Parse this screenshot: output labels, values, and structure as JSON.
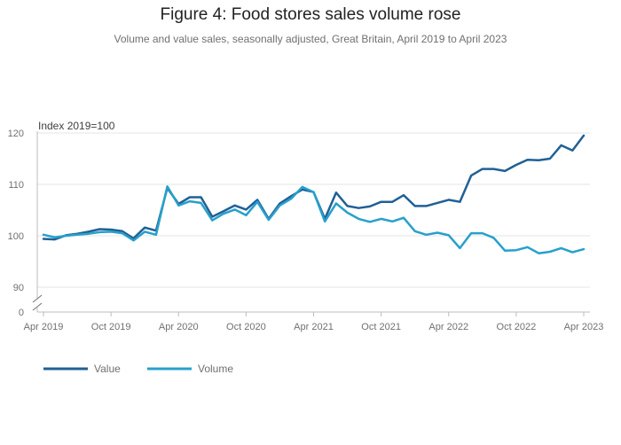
{
  "chart_data": {
    "type": "line",
    "title": "Figure 4: Food stores sales volume rose",
    "subtitle": "Volume and value sales, seasonally adjusted, Great Britain, April 2019 to April 2023",
    "ylabel": "Index 2019=100",
    "ylim": [
      87,
      122
    ],
    "yticks": [
      90,
      100,
      110,
      120
    ],
    "baseline_label": "0",
    "xtick_labels": [
      "Apr 2019",
      "Oct 2019",
      "Apr 2020",
      "Oct 2020",
      "Apr 2021",
      "Oct 2021",
      "Apr 2022",
      "Oct 2022",
      "Apr 2023"
    ],
    "xtick_positions": [
      0,
      6,
      12,
      18,
      24,
      30,
      36,
      42,
      48
    ],
    "series": [
      {
        "name": "Value",
        "color": "#206095",
        "values": [
          99.4,
          99.3,
          100.1,
          100.4,
          100.8,
          101.3,
          101.2,
          100.9,
          99.5,
          101.6,
          101.0,
          109.3,
          106.2,
          107.5,
          107.5,
          103.7,
          104.8,
          105.9,
          105.1,
          107.0,
          103.3,
          106.3,
          107.7,
          109.0,
          108.5,
          103.3,
          108.4,
          105.8,
          105.4,
          105.7,
          106.6,
          106.6,
          107.9,
          105.8,
          105.8,
          106.4,
          107.0,
          106.6,
          111.7,
          113.0,
          113.0,
          112.6,
          113.8,
          114.8,
          114.7,
          115.0,
          117.6,
          116.6,
          119.5
        ]
      },
      {
        "name": "Volume",
        "color": "#27A0CC",
        "values": [
          100.2,
          99.7,
          100.0,
          100.2,
          100.4,
          100.7,
          100.8,
          100.5,
          99.1,
          100.8,
          100.2,
          109.6,
          105.9,
          106.7,
          106.4,
          103.0,
          104.3,
          105.1,
          104.0,
          106.6,
          103.1,
          105.9,
          107.2,
          109.5,
          108.5,
          102.8,
          106.3,
          104.5,
          103.3,
          102.7,
          103.3,
          102.8,
          103.5,
          100.9,
          100.2,
          100.6,
          100.1,
          97.6,
          100.5,
          100.5,
          99.6,
          97.1,
          97.2,
          97.8,
          96.6,
          96.9,
          97.6,
          96.8,
          97.4
        ]
      }
    ],
    "legend_position": "bottom-left"
  }
}
